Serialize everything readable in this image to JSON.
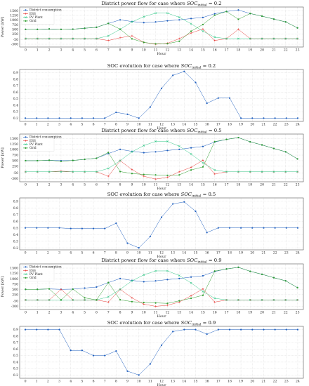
{
  "figure": {
    "hours": [
      "0",
      "1",
      "2",
      "3",
      "4",
      "5",
      "6",
      "7",
      "8",
      "9",
      "10",
      "11",
      "12",
      "13",
      "14",
      "15",
      "16",
      "17",
      "18",
      "19",
      "20",
      "21",
      "22",
      "23",
      "24"
    ]
  },
  "colors": {
    "district": "#1f5fbf",
    "ess": "#e8413c",
    "pv": "#36c98a",
    "grid": "#2e9e2e",
    "soc": "#1f5fbf"
  },
  "chart_data": [
    {
      "type": "line",
      "title_prefix": "District power flow for case where ",
      "title_var": "SOC",
      "title_sub": "initial",
      "title_suffix": " = 0.2",
      "xlabel": "Hour",
      "ylabel": "Power [kW]",
      "xlim": [
        -0.5,
        23.5
      ],
      "ylim": [
        -450,
        1700
      ],
      "yticks": [
        -300,
        -50,
        250,
        500,
        750,
        1000,
        1250,
        1500
      ],
      "ytick_labels": [
        "-300",
        "-50",
        "250",
        "500",
        "750",
        "1000",
        "1250",
        "1500"
      ],
      "xticks": [
        0,
        1,
        2,
        3,
        4,
        5,
        6,
        7,
        8,
        9,
        10,
        11,
        12,
        13,
        14,
        15,
        16,
        17,
        18,
        19,
        20,
        21,
        22,
        23
      ],
      "legend": "top-left",
      "series": [
        {
          "name": "District consumption",
          "color": "#1f5fbf",
          "marker": "circle",
          "values": [
            500,
            500,
            520,
            500,
            510,
            560,
            610,
            820,
            1010,
            920,
            860,
            900,
            960,
            1010,
            1080,
            1140,
            1340,
            1460,
            1540,
            1350,
            1210,
            1050,
            900,
            580
          ]
        },
        {
          "name": "ESS",
          "color": "#e8413c",
          "marker": "plus",
          "values": [
            0,
            0,
            0,
            0,
            0,
            0,
            0,
            -100,
            50,
            150,
            -200,
            -300,
            -250,
            0,
            300,
            520,
            -100,
            0,
            500,
            0,
            0,
            0,
            0,
            0
          ]
        },
        {
          "name": "PV Plant",
          "color": "#36c98a",
          "marker": "x",
          "values": [
            0,
            0,
            0,
            0,
            0,
            0,
            0,
            150,
            500,
            900,
            1180,
            1370,
            1370,
            1150,
            800,
            400,
            80,
            0,
            0,
            0,
            0,
            0,
            0,
            0
          ]
        },
        {
          "name": "Grid",
          "color": "#2e9e2e",
          "marker": "circle",
          "values": [
            500,
            500,
            520,
            500,
            510,
            560,
            610,
            820,
            510,
            -10,
            -200,
            -280,
            -270,
            -140,
            400,
            760,
            1260,
            1460,
            1040,
            1350,
            1210,
            1050,
            900,
            580
          ]
        }
      ]
    },
    {
      "type": "line",
      "title_prefix": "SOC evolution for case where ",
      "title_var": "SOC",
      "title_sub": "initial",
      "title_suffix": " = 0.2",
      "xlabel": "Hour",
      "ylabel": "",
      "xlim": [
        -0.5,
        24.5
      ],
      "ylim": [
        0.15,
        0.95
      ],
      "yticks": [
        0.2,
        0.3,
        0.4,
        0.5,
        0.6,
        0.7,
        0.8,
        0.9
      ],
      "ytick_labels": [
        "0.2",
        "0.3",
        "0.4",
        "0.5",
        "0.6",
        "0.7",
        "0.8",
        "0.9"
      ],
      "xticks": [
        0,
        1,
        2,
        3,
        4,
        5,
        6,
        7,
        8,
        9,
        10,
        11,
        12,
        13,
        14,
        15,
        16,
        17,
        18,
        19,
        20,
        21,
        22,
        23,
        24
      ],
      "legend": "none",
      "series": [
        {
          "color": "#1f5fbf",
          "marker": "circle",
          "values": [
            0.2,
            0.2,
            0.2,
            0.2,
            0.2,
            0.2,
            0.2,
            0.2,
            0.29,
            0.26,
            0.2,
            0.37,
            0.66,
            0.86,
            0.92,
            0.75,
            0.43,
            0.51,
            0.51,
            0.2,
            0.2,
            0.2,
            0.2,
            0.2,
            0.2
          ]
        }
      ]
    },
    {
      "type": "line",
      "title_prefix": "District power flow for case where ",
      "title_var": "SOC",
      "title_sub": "initial",
      "title_suffix": " = 0.5",
      "xlabel": "Hour",
      "ylabel": "Power [kW]",
      "xlim": [
        -0.5,
        23.5
      ],
      "ylim": [
        -450,
        1700
      ],
      "yticks": [
        -300,
        -50,
        250,
        500,
        750,
        1000,
        1250,
        1500
      ],
      "ytick_labels": [
        "-300",
        "-50",
        "250",
        "500",
        "750",
        "1000",
        "1250",
        "1500"
      ],
      "xticks": [
        0,
        1,
        2,
        3,
        4,
        5,
        6,
        7,
        8,
        9,
        10,
        11,
        12,
        13,
        14,
        15,
        16,
        17,
        18,
        19,
        20,
        21,
        22,
        23
      ],
      "legend": "top-left",
      "series": [
        {
          "name": "District consumption",
          "color": "#1f5fbf",
          "marker": "circle",
          "values": [
            500,
            500,
            520,
            500,
            510,
            560,
            610,
            820,
            1010,
            920,
            860,
            900,
            960,
            1010,
            1080,
            1140,
            1340,
            1460,
            1540,
            1350,
            1210,
            1050,
            900,
            580
          ]
        },
        {
          "name": "ESS",
          "color": "#e8413c",
          "marker": "plus",
          "values": [
            0,
            0,
            0,
            30,
            0,
            0,
            0,
            -200,
            500,
            100,
            -200,
            -330,
            -250,
            0,
            200,
            520,
            -100,
            0,
            0,
            0,
            0,
            0,
            0,
            0
          ]
        },
        {
          "name": "PV Plant",
          "color": "#36c98a",
          "marker": "x",
          "values": [
            0,
            0,
            0,
            0,
            0,
            0,
            0,
            150,
            500,
            900,
            1180,
            1370,
            1370,
            1150,
            800,
            400,
            80,
            0,
            0,
            0,
            0,
            0,
            0,
            0
          ]
        },
        {
          "name": "Grid",
          "color": "#2e9e2e",
          "marker": "circle",
          "values": [
            500,
            500,
            520,
            470,
            510,
            560,
            610,
            870,
            10,
            -80,
            -120,
            -140,
            -160,
            -140,
            80,
            220,
            1360,
            1460,
            1540,
            1350,
            1210,
            1050,
            900,
            580
          ]
        }
      ]
    },
    {
      "type": "line",
      "title_prefix": "SOC evolution for case where ",
      "title_var": "SOC",
      "title_sub": "initial",
      "title_suffix": " = 0.5",
      "xlabel": "Hour",
      "ylabel": "",
      "xlim": [
        -0.5,
        24.5
      ],
      "ylim": [
        0.17,
        0.95
      ],
      "yticks": [
        0.2,
        0.3,
        0.4,
        0.5,
        0.6,
        0.7,
        0.8,
        0.9
      ],
      "ytick_labels": [
        "0.2",
        "0.3",
        "0.4",
        "0.5",
        "0.6",
        "0.7",
        "0.8",
        "0.9"
      ],
      "xticks": [
        0,
        1,
        2,
        3,
        4,
        5,
        6,
        7,
        8,
        9,
        10,
        11,
        12,
        13,
        14,
        15,
        16,
        17,
        18,
        19,
        20,
        21,
        22,
        23,
        24
      ],
      "legend": "none",
      "series": [
        {
          "color": "#1f5fbf",
          "marker": "circle",
          "values": [
            0.5,
            0.5,
            0.5,
            0.5,
            0.49,
            0.49,
            0.49,
            0.49,
            0.57,
            0.27,
            0.2,
            0.37,
            0.66,
            0.86,
            0.89,
            0.75,
            0.43,
            0.5,
            0.5,
            0.5,
            0.5,
            0.5,
            0.5,
            0.5,
            0.5
          ]
        }
      ]
    },
    {
      "type": "line",
      "title_prefix": "District power flow for case where ",
      "title_var": "SOC",
      "title_sub": "initial",
      "title_suffix": " = 0.9",
      "xlabel": "Hour",
      "ylabel": "Power [kW]",
      "xlim": [
        -0.5,
        23.5
      ],
      "ylim": [
        -450,
        1700
      ],
      "yticks": [
        -300,
        -50,
        250,
        500,
        750,
        1000,
        1250,
        1500
      ],
      "ytick_labels": [
        "-300",
        "-50",
        "250",
        "500",
        "750",
        "1000",
        "1250",
        "1500"
      ],
      "xticks": [
        0,
        1,
        2,
        3,
        4,
        5,
        6,
        7,
        8,
        9,
        10,
        11,
        12,
        13,
        14,
        15,
        16,
        17,
        18,
        19,
        20,
        21,
        22,
        23
      ],
      "legend": "top-left",
      "series": [
        {
          "name": "District consumption",
          "color": "#1f5fbf",
          "marker": "circle",
          "values": [
            500,
            500,
            520,
            500,
            510,
            560,
            610,
            820,
            1010,
            920,
            860,
            900,
            960,
            1010,
            1080,
            1140,
            1340,
            1460,
            1540,
            1350,
            1210,
            1050,
            900,
            580
          ]
        },
        {
          "name": "ESS",
          "color": "#e8413c",
          "marker": "plus",
          "values": [
            0,
            0,
            0,
            500,
            0,
            0,
            0,
            -100,
            500,
            100,
            -200,
            -300,
            -250,
            -100,
            200,
            520,
            -100,
            0,
            0,
            0,
            0,
            0,
            0,
            0
          ]
        },
        {
          "name": "PV Plant",
          "color": "#36c98a",
          "marker": "x",
          "values": [
            0,
            0,
            0,
            0,
            0,
            0,
            0,
            150,
            500,
            900,
            1180,
            1370,
            1370,
            1150,
            800,
            400,
            80,
            0,
            0,
            0,
            0,
            0,
            0,
            0
          ]
        },
        {
          "name": "Grid",
          "color": "#2e9e2e",
          "marker": "circle",
          "values": [
            500,
            500,
            520,
            0,
            510,
            100,
            0,
            820,
            10,
            -80,
            -120,
            -140,
            -160,
            -40,
            80,
            220,
            1360,
            1460,
            1540,
            1350,
            1210,
            1050,
            900,
            580
          ]
        }
      ]
    },
    {
      "type": "line",
      "title_prefix": "SOC evolution for case where ",
      "title_var": "SOC",
      "title_sub": "initial",
      "title_suffix": " = 0.9",
      "xlabel": "Hour",
      "ylabel": "",
      "xlim": [
        -0.5,
        24.5
      ],
      "ylim": [
        0.15,
        0.95
      ],
      "yticks": [
        0.2,
        0.3,
        0.4,
        0.5,
        0.6,
        0.7,
        0.8,
        0.9
      ],
      "ytick_labels": [
        "0.2",
        "0.3",
        "0.4",
        "0.5",
        "0.6",
        "0.7",
        "0.8",
        "0.9"
      ],
      "xticks": [
        0,
        1,
        2,
        3,
        4,
        5,
        6,
        7,
        8,
        9,
        10,
        11,
        12,
        13,
        14,
        15,
        16,
        17,
        18,
        19,
        20,
        21,
        22,
        23,
        24
      ],
      "legend": "none",
      "series": [
        {
          "color": "#1f5fbf",
          "marker": "circle",
          "values": [
            0.9,
            0.9,
            0.9,
            0.9,
            0.58,
            0.58,
            0.5,
            0.5,
            0.57,
            0.26,
            0.2,
            0.37,
            0.66,
            0.87,
            0.9,
            0.9,
            0.83,
            0.9,
            0.9,
            0.9,
            0.9,
            0.9,
            0.9,
            0.9,
            0.9
          ]
        }
      ]
    }
  ]
}
